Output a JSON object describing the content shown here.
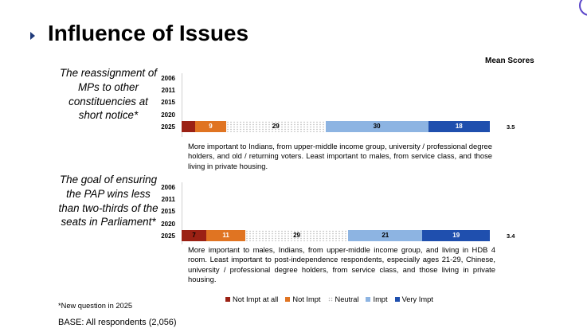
{
  "slide": {
    "title": "Influence of Issues",
    "mean_header": "Mean Scores",
    "footnote": "*New question in 2025",
    "base": "BASE: All respondents (2,056)"
  },
  "colors": {
    "not_impt_at_all": "#9b2114",
    "not_impt": "#e07422",
    "neutral": "#ffffff",
    "impt": "#8db4e2",
    "very_impt": "#1f4fae",
    "title_marker": "#1f3a7a"
  },
  "chart_data": [
    {
      "type": "bar",
      "orientation": "horizontal",
      "stacked": true,
      "issue": "The reassignment of MPs to other constituencies at short notice*",
      "categories": [
        "2006",
        "2011",
        "2015",
        "2020",
        "2025"
      ],
      "series": [
        {
          "name": "Not Impt at all",
          "values": [
            null,
            null,
            null,
            null,
            4
          ]
        },
        {
          "name": "Not Impt",
          "values": [
            null,
            null,
            null,
            null,
            9
          ]
        },
        {
          "name": "Neutral",
          "values": [
            null,
            null,
            null,
            null,
            29
          ]
        },
        {
          "name": "Impt",
          "values": [
            null,
            null,
            null,
            null,
            30
          ]
        },
        {
          "name": "Very Impt",
          "values": [
            null,
            null,
            null,
            null,
            18
          ]
        }
      ],
      "data_labels": {
        "Not Impt at all": "",
        "Not Impt": "9",
        "Neutral": "29",
        "Impt": "30",
        "Very Impt": "18"
      },
      "mean_scores": [
        null,
        null,
        null,
        null,
        "3.5"
      ],
      "note": "More important to Indians, from upper-middle income group, university / professional degree holders, and old / returning voters. Least important to males, from service class, and those living in private housing."
    },
    {
      "type": "bar",
      "orientation": "horizontal",
      "stacked": true,
      "issue": "The goal of ensuring the PAP wins less than two-thirds of the seats in Parliament*",
      "categories": [
        "2006",
        "2011",
        "2015",
        "2020",
        "2025"
      ],
      "series": [
        {
          "name": "Not Impt at all",
          "values": [
            null,
            null,
            null,
            null,
            7
          ]
        },
        {
          "name": "Not Impt",
          "values": [
            null,
            null,
            null,
            null,
            11
          ]
        },
        {
          "name": "Neutral",
          "values": [
            null,
            null,
            null,
            null,
            29
          ]
        },
        {
          "name": "Impt",
          "values": [
            null,
            null,
            null,
            null,
            21
          ]
        },
        {
          "name": "Very Impt",
          "values": [
            null,
            null,
            null,
            null,
            19
          ]
        }
      ],
      "data_labels": {
        "Not Impt at all": "7",
        "Not Impt": "11",
        "Neutral": "29",
        "Impt": "21",
        "Very Impt": "19"
      },
      "mean_scores": [
        null,
        null,
        null,
        null,
        "3.4"
      ],
      "note": "More important to males, Indians, from upper-middle income group, and living in HDB 4 room. Least important to post-independence respondents, especially ages 21-29, Chinese, university / professional degree holders, from service class, and those living in private housing."
    }
  ],
  "legend": [
    {
      "label": "Not Impt at all",
      "color": "#9b2114"
    },
    {
      "label": "Not Impt",
      "color": "#e07422"
    },
    {
      "label": "Neutral",
      "color": "#ffffff"
    },
    {
      "label": "Impt",
      "color": "#8db4e2"
    },
    {
      "label": "Very Impt",
      "color": "#1f4fae"
    }
  ]
}
